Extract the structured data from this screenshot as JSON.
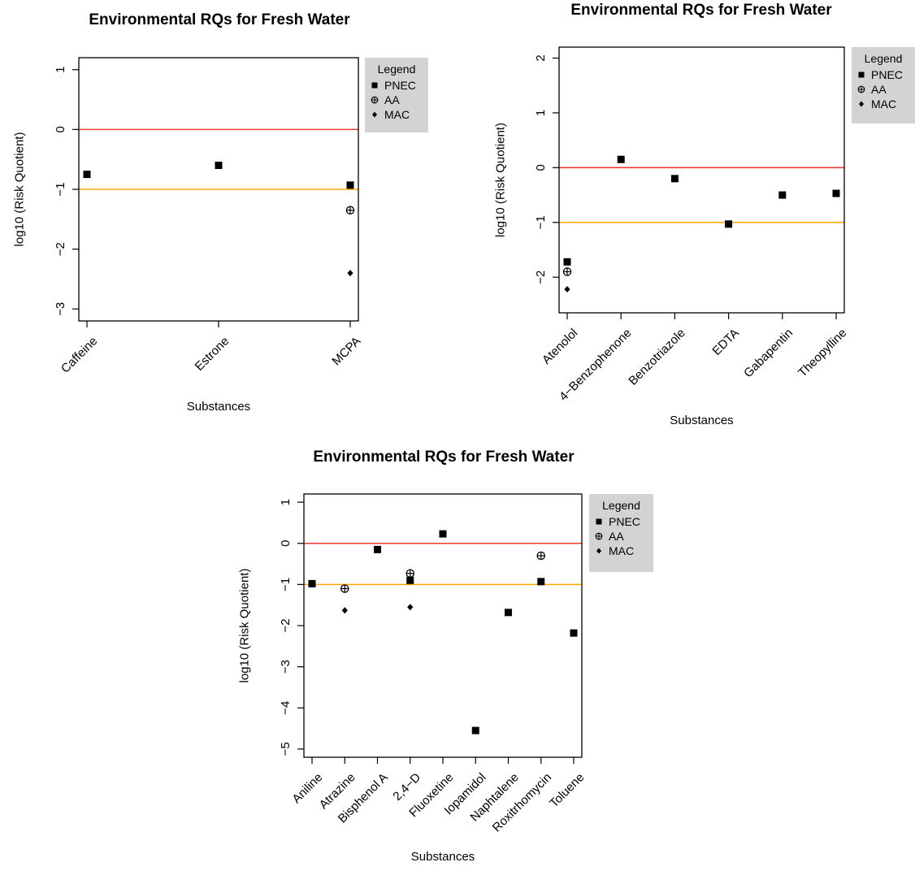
{
  "colors": {
    "reference_red": "#ee3b2f",
    "reference_orange": "#ffa500",
    "legend_bg": "#d3d3d3",
    "marker": "#000000"
  },
  "chart_data": [
    {
      "type": "scatter",
      "title": "Environmental RQs for Fresh Water",
      "xlabel": "Substances",
      "ylabel": "log10 (Risk Quotient)",
      "categories": [
        "Caffeine",
        "Estrone",
        "MCPA"
      ],
      "ylim": [
        -3.2,
        1.2
      ],
      "yticks": [
        "1",
        "0",
        "−1",
        "−2",
        "−3"
      ],
      "ytick_values": [
        1,
        0,
        -1,
        -2,
        -3
      ],
      "reference_lines": [
        {
          "y": 0,
          "color": "red"
        },
        {
          "y": -1,
          "color": "orange"
        }
      ],
      "legend": {
        "title": "Legend",
        "entries": [
          "PNEC",
          "AA",
          "MAC"
        ],
        "placement": "outside-right"
      },
      "series": [
        {
          "name": "PNEC",
          "marker": "square",
          "values": [
            -0.75,
            -0.6,
            -0.93
          ]
        },
        {
          "name": "AA",
          "marker": "circle-plus",
          "values": [
            null,
            null,
            -1.35
          ]
        },
        {
          "name": "MAC",
          "marker": "diamond",
          "values": [
            null,
            null,
            -2.4
          ]
        }
      ]
    },
    {
      "type": "scatter",
      "title": "Environmental RQs for Fresh Water",
      "xlabel": "Substances",
      "ylabel": "log10 (Risk Quotient)",
      "categories": [
        "Atenolol",
        "4−Benzophenone",
        "Benzotriazole",
        "EDTA",
        "Gabapentin",
        "Theopylline"
      ],
      "ylim": [
        -2.65,
        2.2
      ],
      "yticks": [
        "2",
        "1",
        "0",
        "−1",
        "−2"
      ],
      "ytick_values": [
        2,
        1,
        0,
        -1,
        -2
      ],
      "reference_lines": [
        {
          "y": 0,
          "color": "red"
        },
        {
          "y": -1,
          "color": "orange"
        }
      ],
      "legend": {
        "title": "Legend",
        "entries": [
          "PNEC",
          "AA",
          "MAC"
        ],
        "placement": "outside-right"
      },
      "series": [
        {
          "name": "PNEC",
          "marker": "square",
          "values": [
            -1.72,
            0.15,
            -0.2,
            -1.03,
            -0.5,
            -0.47
          ]
        },
        {
          "name": "AA",
          "marker": "circle-plus",
          "values": [
            -1.9,
            null,
            null,
            null,
            null,
            null
          ]
        },
        {
          "name": "MAC",
          "marker": "diamond",
          "values": [
            -2.22,
            null,
            null,
            null,
            null,
            null
          ]
        }
      ]
    },
    {
      "type": "scatter",
      "title": "Environmental RQs for Fresh Water",
      "xlabel": "Substances",
      "ylabel": "log10 (Risk Quotient)",
      "categories": [
        "Aniline",
        "Atrazine",
        "Bisphenol A",
        "2,4−D",
        "Fluoxetine",
        "Iopamidol",
        "Naphtalene",
        "Roxitrhomycin",
        "Toluene"
      ],
      "ylim": [
        -5.2,
        1.2
      ],
      "yticks": [
        "1",
        "0",
        "−1",
        "−2",
        "−3",
        "−4",
        "−5"
      ],
      "ytick_values": [
        1,
        0,
        -1,
        -2,
        -3,
        -4,
        -5
      ],
      "reference_lines": [
        {
          "y": 0,
          "color": "red"
        },
        {
          "y": -1,
          "color": "orange"
        }
      ],
      "legend": {
        "title": "Legend",
        "entries": [
          "PNEC",
          "AA",
          "MAC"
        ],
        "placement": "outside-right"
      },
      "series": [
        {
          "name": "PNEC",
          "marker": "square",
          "values": [
            -0.98,
            null,
            -0.15,
            -0.9,
            0.23,
            -4.55,
            -1.68,
            -0.93,
            -2.18
          ]
        },
        {
          "name": "AA",
          "marker": "circle-plus",
          "values": [
            null,
            -1.1,
            null,
            -0.73,
            null,
            null,
            null,
            -0.3,
            null
          ]
        },
        {
          "name": "MAC",
          "marker": "diamond",
          "values": [
            null,
            -1.63,
            null,
            -1.55,
            null,
            null,
            null,
            null,
            null
          ]
        }
      ]
    }
  ]
}
